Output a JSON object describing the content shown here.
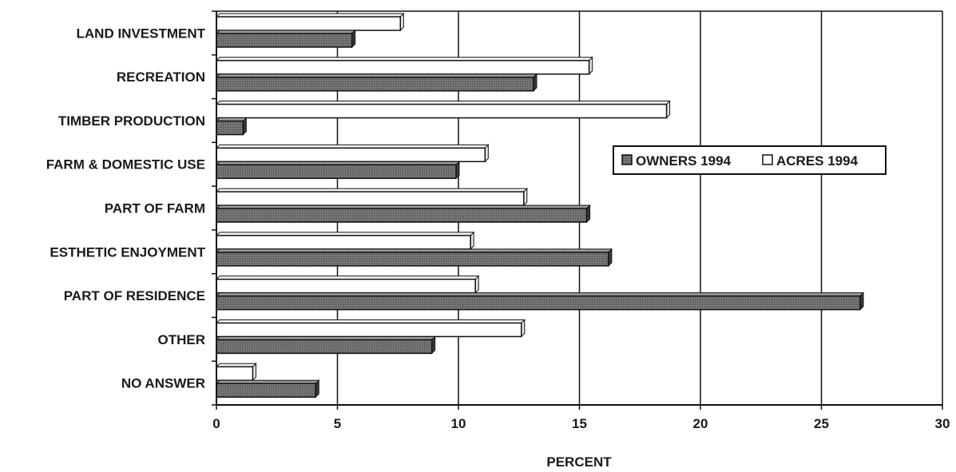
{
  "chart_data": {
    "type": "bar",
    "orientation": "horizontal",
    "categories": [
      "LAND INVESTMENT",
      "RECREATION",
      "TIMBER PRODUCTION",
      "FARM & DOMESTIC USE",
      "PART OF FARM",
      "ESTHETIC ENJOYMENT",
      "PART OF RESIDENCE",
      "OTHER",
      "NO ANSWER"
    ],
    "series": [
      {
        "name": "OWNERS 1994",
        "values": [
          5.6,
          13.1,
          1.1,
          9.9,
          15.3,
          16.2,
          26.6,
          8.9,
          4.1
        ],
        "color": "#6e6e6e"
      },
      {
        "name": "ACRES 1994",
        "values": [
          7.6,
          15.4,
          18.6,
          11.1,
          12.7,
          10.5,
          10.7,
          12.6,
          1.5
        ],
        "color": "#ffffff"
      }
    ],
    "xlabel": "PERCENT",
    "ylabel": "",
    "xlim": [
      0,
      30
    ],
    "xticks": [
      "0",
      "5",
      "10",
      "15",
      "20",
      "25",
      "30"
    ],
    "grid": "vertical",
    "legend_position": "right-middle",
    "legend": [
      "OWNERS 1994",
      "ACRES 1994"
    ]
  }
}
